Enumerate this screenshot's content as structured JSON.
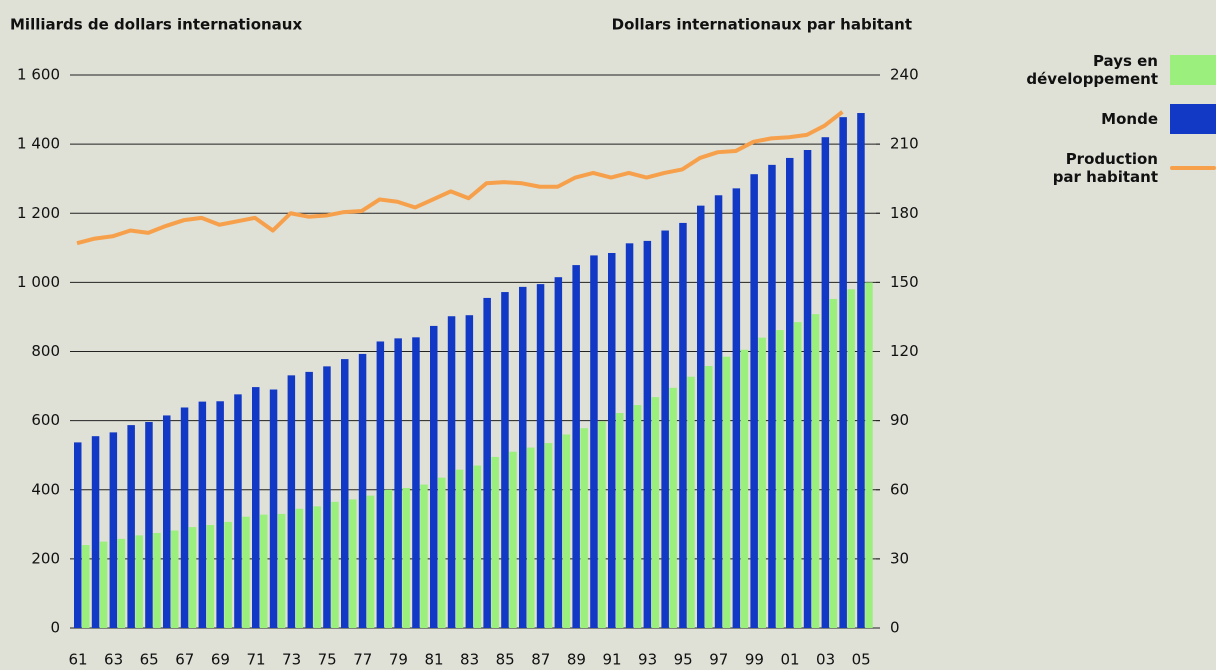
{
  "chart_data": {
    "type": "bar",
    "y_label": "Milliards de dollars internationaux",
    "y2_label": "Dollars internationaux par habitant",
    "categories": [
      "61",
      null,
      "63",
      null,
      "65",
      null,
      "67",
      null,
      "69",
      null,
      "71",
      null,
      "73",
      null,
      "75",
      null,
      "77",
      null,
      "79",
      null,
      "81",
      null,
      "83",
      null,
      "85",
      null,
      "87",
      null,
      "89",
      null,
      "91",
      null,
      "93",
      null,
      "95",
      null,
      "97",
      null,
      "99",
      null,
      "01",
      null,
      "03",
      null,
      "05"
    ],
    "series": [
      {
        "name": "Pays en\ndéveloppement",
        "color": "#9bef7d",
        "type": "bar",
        "values": [
          240,
          250,
          258,
          268,
          275,
          282,
          292,
          298,
          307,
          322,
          328,
          330,
          345,
          352,
          365,
          372,
          383,
          400,
          405,
          415,
          435,
          458,
          470,
          495,
          510,
          522,
          535,
          560,
          578,
          598,
          622,
          645,
          668,
          695,
          727,
          758,
          785,
          805,
          840,
          862,
          885,
          908,
          952,
          980,
          1000
        ]
      },
      {
        "name": "Monde",
        "color": "#1238c6",
        "type": "bar",
        "values": [
          537,
          555,
          566,
          587,
          596,
          615,
          638,
          655,
          656,
          676,
          697,
          690,
          731,
          741,
          757,
          778,
          793,
          829,
          838,
          841,
          874,
          902,
          905,
          955,
          972,
          987,
          995,
          1015,
          1050,
          1078,
          1085,
          1113,
          1120,
          1150,
          1172,
          1222,
          1252,
          1272,
          1313,
          1340,
          1360,
          1383,
          1420,
          1478,
          1490
        ]
      },
      {
        "name": "Production\npar habitant",
        "color": "#f7a04c",
        "type": "line",
        "axis": "y2",
        "values": [
          167,
          169,
          170,
          172.5,
          171.5,
          174.5,
          177,
          178,
          175,
          176.5,
          178,
          172.5,
          180,
          178.5,
          179,
          180.5,
          181,
          186,
          185,
          182.5,
          186,
          189.5,
          186.5,
          193,
          193.5,
          193,
          191.5,
          191.5,
          195.5,
          197.5,
          195.5,
          197.5,
          195.5,
          197.5,
          199,
          204,
          206.5,
          207,
          211,
          212.5,
          213,
          214,
          218,
          224,
          null
        ]
      }
    ],
    "ylim": [
      0,
      1600
    ],
    "yticks": [
      0,
      200,
      400,
      600,
      800,
      {
        "value": 1000,
        "label": "1 000"
      },
      {
        "value": 1200,
        "label": "1 200"
      },
      {
        "value": 1400,
        "label": "1 400"
      },
      {
        "value": 1600,
        "label": "1 600"
      }
    ],
    "y2lim": [
      0,
      240
    ],
    "y2ticks": [
      0,
      30,
      60,
      90,
      120,
      150,
      180,
      210,
      240
    ],
    "grid": true,
    "legend": "right"
  }
}
